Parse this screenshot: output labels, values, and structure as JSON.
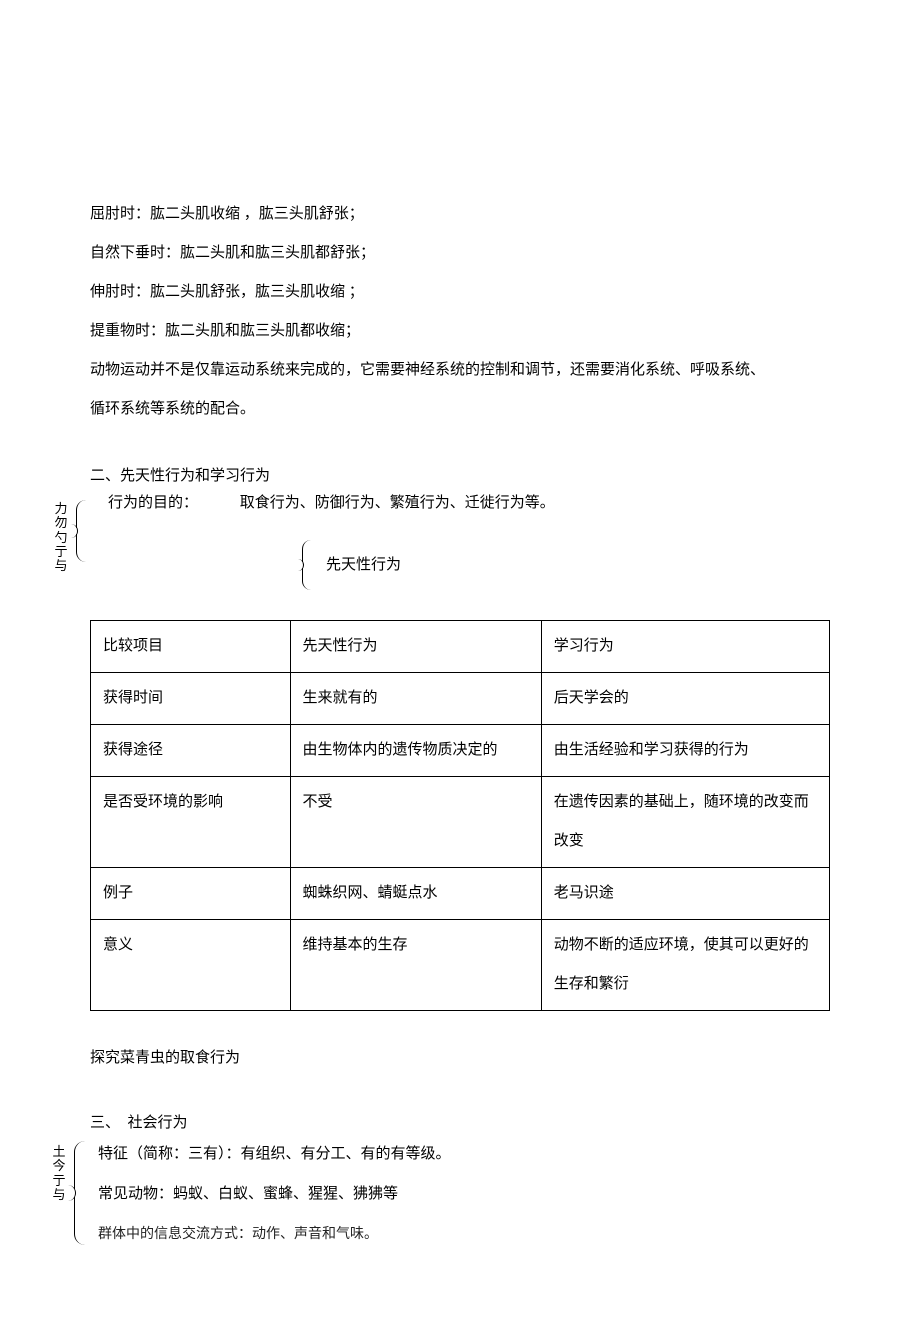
{
  "intro_lines": [
    "屈肘时：肱二头肌收缩 ，肱三头肌舒张；",
    "自然下垂时：肱二头肌和肱三头肌都舒张；",
    "伸肘时：肱二头肌舒张，肱三头肌收缩 ；",
    "提重物时：肱二头肌和肱三头肌都收缩；",
    "动物运动并不是仅靠运动系统来完成的，它需要神经系统的控制和调节，还需要消化系统、呼吸系统、",
    "循环系统等系统的配合。"
  ],
  "section2_title": "二、先天性行为和学习行为",
  "behavior_block": {
    "vertical_label": "力勿勺亍与",
    "row1_label": "行为的目的：",
    "row1_value": "取食行为、防御行为、繁殖行为、迁徙行为等。",
    "row2_value": "先天性行为"
  },
  "table": {
    "rows": [
      [
        "比较项目",
        "先天性行为",
        "学习行为"
      ],
      [
        "获得时间",
        "生来就有的",
        "后天学会的"
      ],
      [
        "获得途径",
        "由生物体内的遗传物质决定的",
        "由生活经验和学习获得的行为"
      ],
      [
        "是否受环境的影响",
        "不受",
        "在遗传因素的基础上，随环境的改变而改变"
      ],
      [
        "例子",
        "蜘蛛织网、蜻蜓点水",
        "老马识途"
      ],
      [
        "意义",
        "维持基本的生存",
        "动物不断的适应环境，使其可以更好的生存和繁衍"
      ]
    ]
  },
  "after_table_line": "探究菜青虫的取食行为",
  "section3_title": "三、　社会行为",
  "social_block": {
    "vertical_label": "土今亍与",
    "lines": [
      "特征（简称：三有）：有组织、有分工、有的有等级。",
      "常见动物：蚂蚁、白蚁、蜜蜂、猩猩、狒狒等",
      "群体中的信息交流方式：动作、声音和气味。"
    ]
  }
}
